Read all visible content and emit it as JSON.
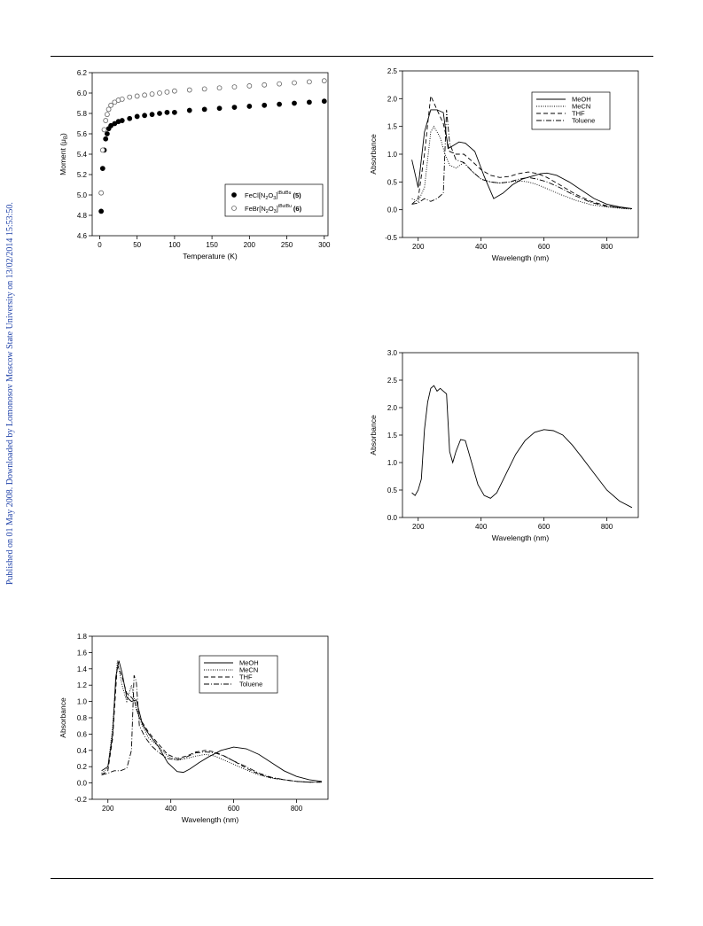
{
  "side_note": "Published on 01 May 2008. Downloaded by Lomonosov Moscow State University on 13/02/2014 15:53:50.",
  "chart_data": [
    {
      "id": "moment",
      "type": "scatter",
      "xlabel": "Temperature (K)",
      "ylabel": "Moment (μB)",
      "xlim": [
        -10,
        305
      ],
      "ylim": [
        4.6,
        6.2
      ],
      "xticks": [
        0,
        50,
        100,
        150,
        200,
        250,
        300
      ],
      "yticks": [
        4.6,
        4.8,
        5.0,
        5.2,
        5.4,
        5.6,
        5.8,
        6.0,
        6.2
      ],
      "ytick_labels": [
        "4.6",
        "4.8",
        "5.0",
        "5.2",
        "5.4",
        "5.6",
        "5.8",
        "6.0",
        "6.2"
      ],
      "legend_position": "bottom-right",
      "legend_label_pre": "Moment (",
      "legend_label_mu": "μ",
      "legend_label_sub": "B",
      "legend_label_post": ")",
      "series": [
        {
          "name": "FeCl[N2O3]tBuBu (5)",
          "legend": {
            "main": "FeCl[N",
            "s1": "2",
            "m2": "O",
            "s2": "3",
            "m3": "]",
            "sup": "tButBu",
            "tail": " (5)"
          },
          "marker": "filled",
          "x": [
            2,
            4,
            6,
            8,
            10,
            12,
            15,
            20,
            25,
            30,
            40,
            50,
            60,
            70,
            80,
            90,
            100,
            120,
            140,
            160,
            180,
            200,
            220,
            240,
            260,
            280,
            300
          ],
          "y": [
            4.84,
            5.26,
            5.44,
            5.55,
            5.6,
            5.65,
            5.68,
            5.7,
            5.72,
            5.73,
            5.75,
            5.77,
            5.78,
            5.79,
            5.8,
            5.81,
            5.81,
            5.83,
            5.84,
            5.85,
            5.86,
            5.87,
            5.88,
            5.89,
            5.9,
            5.91,
            5.92
          ]
        },
        {
          "name": "FeBr[N2O3]tBuBu (6)",
          "legend": {
            "main": "FeBr[N",
            "s1": "2",
            "m2": "O",
            "s2": "3",
            "m3": "]",
            "sup": "tButBu",
            "tail": " (6)"
          },
          "marker": "open",
          "x": [
            2,
            4,
            6,
            8,
            10,
            12,
            15,
            20,
            25,
            30,
            40,
            50,
            60,
            70,
            80,
            90,
            100,
            120,
            140,
            160,
            180,
            200,
            220,
            240,
            260,
            280,
            300
          ],
          "y": [
            5.02,
            5.44,
            5.64,
            5.73,
            5.79,
            5.84,
            5.88,
            5.91,
            5.93,
            5.94,
            5.96,
            5.97,
            5.98,
            5.99,
            6.0,
            6.01,
            6.02,
            6.03,
            6.04,
            6.05,
            6.06,
            6.07,
            6.08,
            6.09,
            6.1,
            6.11,
            6.12
          ]
        }
      ]
    },
    {
      "id": "uv1",
      "type": "line",
      "xlabel": "Wavelength (nm)",
      "ylabel": "Absorbance",
      "xlim": [
        150,
        900
      ],
      "ylim": [
        -0.5,
        2.5
      ],
      "xticks": [
        200,
        400,
        600,
        800
      ],
      "yticks": [
        -0.5,
        0.0,
        0.5,
        1.0,
        1.5,
        2.0,
        2.5
      ],
      "ytick_labels": [
        "-0.5",
        "0.0",
        "0.5",
        "1.0",
        "1.5",
        "2.0",
        "2.5"
      ],
      "legend_position": "top-right",
      "series": [
        {
          "name": "MeOH",
          "dash": "",
          "x": [
            180,
            200,
            220,
            240,
            260,
            280,
            295,
            310,
            330,
            350,
            380,
            410,
            440,
            470,
            500,
            530,
            560,
            590,
            610,
            640,
            680,
            720,
            760,
            800,
            840,
            880
          ],
          "y": [
            0.9,
            0.4,
            1.4,
            1.8,
            1.8,
            1.75,
            1.1,
            1.15,
            1.22,
            1.2,
            1.05,
            0.6,
            0.2,
            0.3,
            0.45,
            0.55,
            0.6,
            0.65,
            0.66,
            0.62,
            0.5,
            0.35,
            0.2,
            0.1,
            0.05,
            0.02
          ]
        },
        {
          "name": "MeCN",
          "dash": "1,1.5",
          "x": [
            180,
            200,
            220,
            240,
            250,
            270,
            285,
            300,
            320,
            345,
            370,
            400,
            430,
            460,
            490,
            520,
            550,
            580,
            610,
            650,
            700,
            750,
            800,
            850,
            880
          ],
          "y": [
            0.2,
            0.15,
            0.4,
            1.4,
            1.5,
            1.3,
            1.0,
            0.8,
            0.75,
            0.85,
            0.7,
            0.55,
            0.5,
            0.48,
            0.5,
            0.52,
            0.5,
            0.45,
            0.38,
            0.28,
            0.17,
            0.09,
            0.05,
            0.02,
            0.01
          ]
        },
        {
          "name": "THF",
          "dash": "5,3",
          "x": [
            180,
            200,
            220,
            240,
            260,
            280,
            300,
            320,
            345,
            370,
            400,
            430,
            460,
            490,
            520,
            550,
            580,
            610,
            650,
            700,
            750,
            800,
            850,
            880
          ],
          "y": [
            0.1,
            0.2,
            1.0,
            2.05,
            1.8,
            1.55,
            1.05,
            1.0,
            1.0,
            0.88,
            0.72,
            0.62,
            0.58,
            0.6,
            0.65,
            0.68,
            0.65,
            0.58,
            0.45,
            0.28,
            0.15,
            0.07,
            0.03,
            0.02
          ]
        },
        {
          "name": "Toluene",
          "dash": "6,2,1,2",
          "x": [
            180,
            200,
            220,
            240,
            260,
            280,
            290,
            300,
            320,
            345,
            370,
            400,
            430,
            460,
            490,
            520,
            550,
            580,
            610,
            650,
            700,
            750,
            800,
            850,
            880
          ],
          "y": [
            0.1,
            0.12,
            0.2,
            0.15,
            0.2,
            0.3,
            1.8,
            1.2,
            0.9,
            0.85,
            0.7,
            0.55,
            0.5,
            0.48,
            0.5,
            0.55,
            0.58,
            0.55,
            0.5,
            0.4,
            0.25,
            0.13,
            0.06,
            0.03,
            0.02
          ]
        }
      ]
    },
    {
      "id": "uv2",
      "type": "line",
      "xlabel": "Wavelength (nm)",
      "ylabel": "Absorbance",
      "xlim": [
        150,
        900
      ],
      "ylim": [
        0.0,
        3.0
      ],
      "xticks": [
        200,
        400,
        600,
        800
      ],
      "yticks": [
        0.0,
        0.5,
        1.0,
        1.5,
        2.0,
        2.5,
        3.0
      ],
      "ytick_labels": [
        "0.0",
        "0.5",
        "1.0",
        "1.5",
        "2.0",
        "2.5",
        "3.0"
      ],
      "legend_position": "none",
      "series": [
        {
          "name": "",
          "dash": "",
          "x": [
            180,
            190,
            200,
            210,
            220,
            230,
            240,
            250,
            260,
            270,
            280,
            290,
            300,
            310,
            320,
            335,
            350,
            370,
            390,
            410,
            430,
            450,
            480,
            510,
            540,
            570,
            600,
            630,
            660,
            690,
            720,
            760,
            800,
            840,
            880
          ],
          "y": [
            0.45,
            0.4,
            0.5,
            0.7,
            1.6,
            2.1,
            2.35,
            2.4,
            2.3,
            2.35,
            2.3,
            2.25,
            1.2,
            1.0,
            1.2,
            1.42,
            1.4,
            1.0,
            0.6,
            0.4,
            0.35,
            0.45,
            0.8,
            1.15,
            1.4,
            1.55,
            1.6,
            1.58,
            1.5,
            1.32,
            1.1,
            0.8,
            0.5,
            0.3,
            0.18
          ]
        }
      ]
    },
    {
      "id": "uv3",
      "type": "line",
      "xlabel": "Wavelength (nm)",
      "ylabel": "Absorbance",
      "xlim": [
        150,
        900
      ],
      "ylim": [
        -0.2,
        1.8
      ],
      "xticks": [
        200,
        400,
        600,
        800
      ],
      "yticks": [
        -0.2,
        0.0,
        0.2,
        0.4,
        0.6,
        0.8,
        1.0,
        1.2,
        1.4,
        1.6,
        1.8
      ],
      "ytick_labels": [
        "-0.2",
        "0.0",
        "0.2",
        "0.4",
        "0.6",
        "0.8",
        "1.0",
        "1.2",
        "1.4",
        "1.6",
        "1.8"
      ],
      "legend_position": "top-right",
      "series": [
        {
          "name": "MeOH",
          "dash": "",
          "x": [
            180,
            200,
            215,
            225,
            235,
            245,
            260,
            275,
            290,
            310,
            330,
            360,
            390,
            420,
            440,
            460,
            490,
            520,
            560,
            600,
            640,
            680,
            720,
            760,
            800,
            840,
            880
          ],
          "y": [
            0.15,
            0.2,
            0.6,
            1.3,
            1.5,
            1.35,
            1.05,
            1.0,
            1.02,
            0.72,
            0.6,
            0.45,
            0.25,
            0.14,
            0.13,
            0.17,
            0.25,
            0.32,
            0.4,
            0.44,
            0.42,
            0.35,
            0.25,
            0.15,
            0.08,
            0.04,
            0.02
          ]
        },
        {
          "name": "MeCN",
          "dash": "1,1.5",
          "x": [
            180,
            200,
            215,
            230,
            245,
            260,
            275,
            290,
            310,
            330,
            360,
            390,
            420,
            450,
            480,
            510,
            540,
            570,
            600,
            640,
            680,
            720,
            760,
            800,
            840,
            880
          ],
          "y": [
            0.12,
            0.18,
            0.7,
            1.5,
            1.2,
            1.0,
            1.2,
            0.9,
            0.7,
            0.55,
            0.45,
            0.33,
            0.28,
            0.3,
            0.33,
            0.35,
            0.33,
            0.28,
            0.23,
            0.16,
            0.1,
            0.06,
            0.04,
            0.02,
            0.01,
            0.01
          ]
        },
        {
          "name": "THF",
          "dash": "5,3",
          "x": [
            180,
            200,
            215,
            230,
            245,
            260,
            275,
            285,
            300,
            330,
            360,
            390,
            420,
            450,
            480,
            510,
            540,
            570,
            600,
            640,
            680,
            720,
            760,
            800,
            840,
            880
          ],
          "y": [
            0.1,
            0.15,
            0.55,
            1.45,
            1.3,
            1.1,
            1.05,
            1.0,
            0.8,
            0.62,
            0.48,
            0.35,
            0.3,
            0.33,
            0.38,
            0.4,
            0.38,
            0.33,
            0.27,
            0.18,
            0.11,
            0.06,
            0.04,
            0.02,
            0.01,
            0.01
          ]
        },
        {
          "name": "Toluene",
          "dash": "6,2,1,2",
          "x": [
            180,
            200,
            220,
            240,
            260,
            275,
            283,
            290,
            300,
            320,
            340,
            360,
            390,
            420,
            450,
            480,
            510,
            540,
            570,
            600,
            640,
            680,
            720,
            760,
            800,
            840,
            880
          ],
          "y": [
            0.1,
            0.12,
            0.15,
            0.15,
            0.18,
            0.4,
            1.32,
            1.25,
            0.7,
            0.55,
            0.45,
            0.38,
            0.3,
            0.28,
            0.32,
            0.37,
            0.38,
            0.37,
            0.33,
            0.27,
            0.2,
            0.12,
            0.07,
            0.04,
            0.02,
            0.01,
            0.01
          ]
        }
      ]
    }
  ]
}
